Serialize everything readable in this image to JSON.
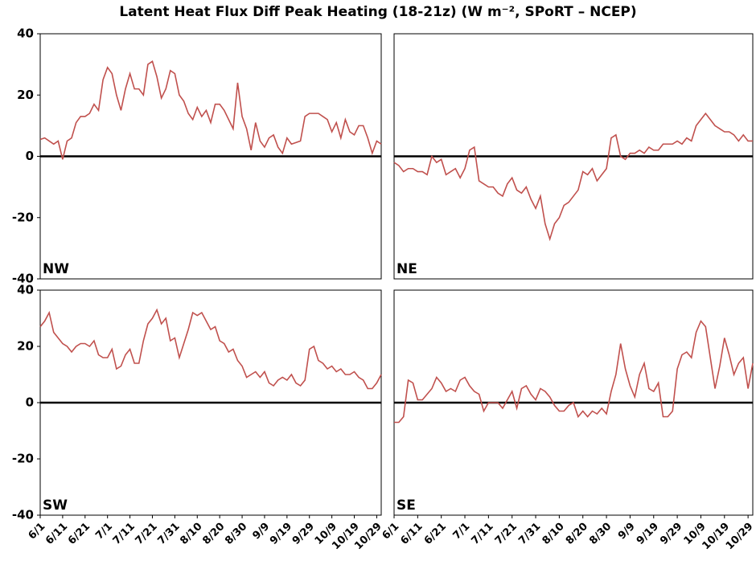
{
  "title": "Latent Heat Flux Diff Peak Heating (18-21z) (W m⁻², SPoRT – NCEP)",
  "chart_data": [
    {
      "type": "line",
      "label": "NW",
      "color": "#c0504d",
      "ylim": [
        -40,
        40
      ],
      "yticks": [
        40,
        20,
        0,
        -20,
        -40
      ],
      "hline": 0,
      "categories": [
        "6/1",
        "6/3",
        "6/5",
        "6/7",
        "6/9",
        "6/11",
        "6/13",
        "6/15",
        "6/17",
        "6/19",
        "6/21",
        "6/23",
        "6/25",
        "6/27",
        "6/29",
        "7/1",
        "7/3",
        "7/5",
        "7/7",
        "7/9",
        "7/11",
        "7/13",
        "7/15",
        "7/17",
        "7/19",
        "7/21",
        "7/23",
        "7/25",
        "7/27",
        "7/29",
        "7/31",
        "8/2",
        "8/4",
        "8/6",
        "8/8",
        "8/10",
        "8/12",
        "8/14",
        "8/16",
        "8/18",
        "8/20",
        "8/22",
        "8/24",
        "8/26",
        "8/28",
        "8/30",
        "9/1",
        "9/3",
        "9/5",
        "9/7",
        "9/9",
        "9/11",
        "9/13",
        "9/15",
        "9/17",
        "9/19",
        "9/21",
        "9/23",
        "9/25",
        "9/27",
        "9/29",
        "10/1",
        "10/3",
        "10/5",
        "10/7",
        "10/9",
        "10/11",
        "10/13",
        "10/15",
        "10/17",
        "10/19",
        "10/21",
        "10/23",
        "10/25",
        "10/27",
        "10/29",
        "10/31"
      ],
      "values": [
        5.5,
        6,
        5,
        4,
        5,
        -1,
        5,
        6,
        11,
        13,
        13,
        14,
        17,
        15,
        25,
        29,
        27,
        20,
        15,
        22,
        27,
        22,
        22,
        20,
        30,
        31,
        26,
        19,
        22,
        28,
        27,
        20,
        18,
        14,
        12,
        16,
        13,
        15,
        11,
        17,
        17,
        15,
        12,
        9,
        24,
        13,
        9,
        2,
        11,
        5,
        3,
        6,
        7,
        3,
        1,
        6,
        4,
        4.5,
        5,
        13,
        14,
        14,
        14,
        13,
        12,
        8,
        11,
        6,
        12,
        8,
        7,
        10,
        10,
        6,
        1,
        5,
        4
      ]
    },
    {
      "type": "line",
      "label": "NE",
      "color": "#c0504d",
      "ylim": [
        -40,
        40
      ],
      "hline": 0,
      "categories": [
        "6/1",
        "6/3",
        "6/5",
        "6/7",
        "6/9",
        "6/11",
        "6/13",
        "6/15",
        "6/17",
        "6/19",
        "6/21",
        "6/23",
        "6/25",
        "6/27",
        "6/29",
        "7/1",
        "7/3",
        "7/5",
        "7/7",
        "7/9",
        "7/11",
        "7/13",
        "7/15",
        "7/17",
        "7/19",
        "7/21",
        "7/23",
        "7/25",
        "7/27",
        "7/29",
        "7/31",
        "8/2",
        "8/4",
        "8/6",
        "8/8",
        "8/10",
        "8/12",
        "8/14",
        "8/16",
        "8/18",
        "8/20",
        "8/22",
        "8/24",
        "8/26",
        "8/28",
        "8/30",
        "9/1",
        "9/3",
        "9/5",
        "9/7",
        "9/9",
        "9/11",
        "9/13",
        "9/15",
        "9/17",
        "9/19",
        "9/21",
        "9/23",
        "9/25",
        "9/27",
        "9/29",
        "10/1",
        "10/3",
        "10/5",
        "10/7",
        "10/9",
        "10/11",
        "10/13",
        "10/15",
        "10/17",
        "10/19",
        "10/21",
        "10/23",
        "10/25",
        "10/27",
        "10/29",
        "10/31"
      ],
      "values": [
        -2,
        -3,
        -5,
        -4,
        -4,
        -5,
        -5,
        -6,
        0,
        -2,
        -1,
        -6,
        -5,
        -4,
        -7,
        -4,
        2,
        3,
        -8,
        -9,
        -10,
        -10,
        -12,
        -13,
        -9,
        -7,
        -11,
        -12,
        -10,
        -14,
        -17,
        -13,
        -22,
        -27,
        -22,
        -20,
        -16,
        -15,
        -13,
        -11,
        -5,
        -6,
        -4,
        -8,
        -6,
        -4,
        6,
        7,
        0,
        -1,
        1,
        1,
        2,
        1,
        3,
        2,
        2,
        4,
        4,
        4,
        5,
        4,
        6,
        5,
        10,
        12,
        14,
        12,
        10,
        9,
        8,
        8,
        7,
        5,
        7,
        5,
        5
      ]
    },
    {
      "type": "line",
      "label": "SW",
      "color": "#c0504d",
      "ylim": [
        -40,
        40
      ],
      "yticks": [
        40,
        20,
        0,
        -20,
        -40
      ],
      "hline": 0,
      "xticks": [
        "6/1",
        "6/11",
        "6/21",
        "7/1",
        "7/11",
        "7/21",
        "7/31",
        "8/10",
        "8/20",
        "8/30",
        "9/9",
        "9/19",
        "9/29",
        "10/9",
        "10/19",
        "10/29"
      ],
      "categories": [
        "6/1",
        "6/3",
        "6/5",
        "6/7",
        "6/9",
        "6/11",
        "6/13",
        "6/15",
        "6/17",
        "6/19",
        "6/21",
        "6/23",
        "6/25",
        "6/27",
        "6/29",
        "7/1",
        "7/3",
        "7/5",
        "7/7",
        "7/9",
        "7/11",
        "7/13",
        "7/15",
        "7/17",
        "7/19",
        "7/21",
        "7/23",
        "7/25",
        "7/27",
        "7/29",
        "7/31",
        "8/2",
        "8/4",
        "8/6",
        "8/8",
        "8/10",
        "8/12",
        "8/14",
        "8/16",
        "8/18",
        "8/20",
        "8/22",
        "8/24",
        "8/26",
        "8/28",
        "8/30",
        "9/1",
        "9/3",
        "9/5",
        "9/7",
        "9/9",
        "9/11",
        "9/13",
        "9/15",
        "9/17",
        "9/19",
        "9/21",
        "9/23",
        "9/25",
        "9/27",
        "9/29",
        "10/1",
        "10/3",
        "10/5",
        "10/7",
        "10/9",
        "10/11",
        "10/13",
        "10/15",
        "10/17",
        "10/19",
        "10/21",
        "10/23",
        "10/25",
        "10/27",
        "10/29",
        "10/31"
      ],
      "values": [
        27,
        29,
        32,
        25,
        23,
        21,
        20,
        18,
        20,
        21,
        21,
        20,
        22,
        17,
        16,
        16,
        19,
        12,
        13,
        17,
        19,
        14,
        14,
        22,
        28,
        30,
        33,
        28,
        30,
        22,
        23,
        16,
        21,
        26,
        32,
        31,
        32,
        29,
        26,
        27,
        22,
        21,
        18,
        19,
        15,
        13,
        9,
        10,
        11,
        9,
        11,
        7,
        6,
        8,
        9,
        8,
        10,
        7,
        6,
        8,
        19,
        20,
        15,
        14,
        12,
        13,
        11,
        12,
        10,
        10,
        11,
        9,
        8,
        5,
        5,
        7,
        10
      ]
    },
    {
      "type": "line",
      "label": "SE",
      "color": "#c0504d",
      "ylim": [
        -40,
        40
      ],
      "hline": 0,
      "xticks": [
        "6/1",
        "6/11",
        "6/21",
        "7/1",
        "7/11",
        "7/21",
        "7/31",
        "8/10",
        "8/20",
        "8/30",
        "9/9",
        "9/19",
        "9/29",
        "10/9",
        "10/19",
        "10/29"
      ],
      "categories": [
        "6/1",
        "6/3",
        "6/5",
        "6/7",
        "6/9",
        "6/11",
        "6/13",
        "6/15",
        "6/17",
        "6/19",
        "6/21",
        "6/23",
        "6/25",
        "6/27",
        "6/29",
        "7/1",
        "7/3",
        "7/5",
        "7/7",
        "7/9",
        "7/11",
        "7/13",
        "7/15",
        "7/17",
        "7/19",
        "7/21",
        "7/23",
        "7/25",
        "7/27",
        "7/29",
        "7/31",
        "8/2",
        "8/4",
        "8/6",
        "8/8",
        "8/10",
        "8/12",
        "8/14",
        "8/16",
        "8/18",
        "8/20",
        "8/22",
        "8/24",
        "8/26",
        "8/28",
        "8/30",
        "9/1",
        "9/3",
        "9/5",
        "9/7",
        "9/9",
        "9/11",
        "9/13",
        "9/15",
        "9/17",
        "9/19",
        "9/21",
        "9/23",
        "9/25",
        "9/27",
        "9/29",
        "10/1",
        "10/3",
        "10/5",
        "10/7",
        "10/9",
        "10/11",
        "10/13",
        "10/15",
        "10/17",
        "10/19",
        "10/21",
        "10/23",
        "10/25",
        "10/27",
        "10/29",
        "10/31"
      ],
      "values": [
        -7,
        -7,
        -5,
        8,
        7,
        1,
        1,
        3,
        5,
        9,
        7,
        4,
        5,
        4,
        8,
        9,
        6,
        4,
        3,
        -3,
        0,
        0,
        0,
        -2,
        1,
        4,
        -2,
        5,
        6,
        3,
        1,
        5,
        4,
        2,
        -1,
        -3,
        -3,
        -1,
        0,
        -5,
        -3,
        -5,
        -3,
        -4,
        -2,
        -4,
        4,
        10,
        21,
        12,
        6,
        2,
        10,
        14,
        5,
        4,
        7,
        -5,
        -5,
        -3,
        12,
        17,
        18,
        16,
        25,
        29,
        27,
        16,
        5,
        13,
        23,
        17,
        10,
        14,
        16,
        5,
        14
      ]
    }
  ]
}
